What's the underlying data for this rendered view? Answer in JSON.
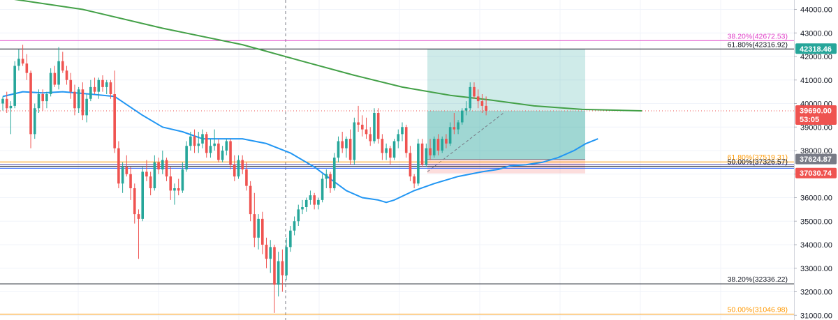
{
  "chart_data": {
    "type": "candlestick",
    "y_axis": {
      "position": "right",
      "ylim": [
        30800,
        44400
      ],
      "ticks": [
        {
          "value": 44000,
          "label": "44000.00"
        },
        {
          "value": 43000,
          "label": "43000.00"
        },
        {
          "value": 42000,
          "label": "42000.00"
        },
        {
          "value": 41000,
          "label": "41000.00"
        },
        {
          "value": 40000,
          "label": "40000.00"
        },
        {
          "value": 39000,
          "label": "39000.00"
        },
        {
          "value": 38000,
          "label": "38000.00"
        },
        {
          "value": 37000,
          "label": "37000.00"
        },
        {
          "value": 36000,
          "label": "36000.00"
        },
        {
          "value": 35000,
          "label": "35000.00"
        },
        {
          "value": 34000,
          "label": "34000.00"
        },
        {
          "value": 33000,
          "label": "33000.00"
        },
        {
          "value": 32000,
          "label": "32000.00"
        },
        {
          "value": 31000,
          "label": "31000.00"
        }
      ]
    },
    "grid": true,
    "fib_levels": [
      {
        "label": "38.20%(42672.53)",
        "value": 42672.53,
        "color": "#e040c8"
      },
      {
        "label": "61.80%(42316.92)",
        "value": 42316.92,
        "color": "#131722"
      },
      {
        "label": "61.80%(37519.31)",
        "value": 37519.31,
        "color": "#ff9800"
      },
      {
        "label": "50.00%(37326.57)",
        "value": 37326.57,
        "color": "#131722"
      },
      {
        "label": "38.20%(32336.22)",
        "value": 32336.22,
        "color": "#131722"
      },
      {
        "label": "50.00%(31046.98)",
        "value": 31046.98,
        "color": "#ff9800"
      }
    ],
    "extra_lines": [
      {
        "value": 37400,
        "color": "#3a3aa8"
      },
      {
        "value": 37250,
        "color": "#2962ff"
      }
    ],
    "price_badges": [
      {
        "label": "42318.46",
        "value": 42318.46,
        "color": "#26a69a"
      },
      {
        "label": "39690.00",
        "sublabel": "53:05",
        "value": 39690,
        "color": "#ef5350"
      },
      {
        "label": "37624.87",
        "value": 37624.87,
        "color": "#787b86"
      },
      {
        "label": "37030.74",
        "value": 37030.74,
        "color": "#ef5350"
      }
    ],
    "current_price": 39690,
    "position_box": {
      "entry": 37624.87,
      "target": 42318.46,
      "stop": 37030.74,
      "current": 39690,
      "profit_color": "#26a69a",
      "loss_color": "#ef5350"
    },
    "candles": [
      [
        40000,
        40300,
        39700,
        40200
      ],
      [
        40200,
        40500,
        39600,
        39800
      ],
      [
        39800,
        40100,
        38700,
        39900
      ],
      [
        39900,
        41800,
        39800,
        41600
      ],
      [
        41600,
        42300,
        41400,
        41900
      ],
      [
        41900,
        42500,
        41600,
        41700
      ],
      [
        41700,
        42100,
        41000,
        41300
      ],
      [
        41300,
        41400,
        38100,
        38700
      ],
      [
        38700,
        40000,
        38500,
        39800
      ],
      [
        39800,
        40600,
        39600,
        40400
      ],
      [
        40400,
        40600,
        39700,
        40100
      ],
      [
        40100,
        40500,
        39800,
        40400
      ],
      [
        40400,
        41500,
        40300,
        41300
      ],
      [
        41300,
        41600,
        40700,
        40800
      ],
      [
        40800,
        42400,
        40600,
        41800
      ],
      [
        41800,
        42200,
        41300,
        41400
      ],
      [
        41400,
        41600,
        40800,
        41000
      ],
      [
        41000,
        41300,
        40200,
        40500
      ],
      [
        40500,
        40800,
        39500,
        39800
      ],
      [
        39800,
        40700,
        39600,
        40600
      ],
      [
        40600,
        40900,
        39300,
        39500
      ],
      [
        39500,
        40400,
        39200,
        40200
      ],
      [
        40200,
        41000,
        40100,
        40700
      ],
      [
        40700,
        41100,
        40400,
        40500
      ],
      [
        40500,
        41100,
        40200,
        41000
      ],
      [
        41000,
        41200,
        40500,
        40700
      ],
      [
        40700,
        41000,
        40400,
        40900
      ],
      [
        40900,
        41000,
        40200,
        40400
      ],
      [
        40400,
        41400,
        37900,
        38100
      ],
      [
        38100,
        38400,
        36400,
        36600
      ],
      [
        36600,
        37500,
        36200,
        37300
      ],
      [
        37300,
        37800,
        36900,
        37000
      ],
      [
        37000,
        37300,
        35900,
        36400
      ],
      [
        36400,
        36600,
        34900,
        35300
      ],
      [
        35300,
        35500,
        33400,
        35100
      ],
      [
        35100,
        37300,
        35000,
        37100
      ],
      [
        37100,
        37600,
        36700,
        36900
      ],
      [
        36900,
        37100,
        36100,
        36400
      ],
      [
        36400,
        37800,
        36300,
        37500
      ],
      [
        37500,
        37700,
        37000,
        37200
      ],
      [
        37200,
        38000,
        37000,
        37600
      ],
      [
        37600,
        37700,
        36700,
        36900
      ],
      [
        36900,
        37300,
        35900,
        36300
      ],
      [
        36300,
        36600,
        35700,
        36400
      ],
      [
        36400,
        36800,
        36100,
        36300
      ],
      [
        36300,
        37500,
        36200,
        37200
      ],
      [
        37200,
        38400,
        37100,
        38200
      ],
      [
        38200,
        38800,
        38000,
        38600
      ],
      [
        38600,
        38900,
        37900,
        38200
      ],
      [
        38200,
        38800,
        37900,
        38300
      ],
      [
        38300,
        38900,
        38100,
        38700
      ],
      [
        38700,
        38800,
        37700,
        37900
      ],
      [
        37900,
        38500,
        37700,
        38200
      ],
      [
        38200,
        38900,
        38000,
        38300
      ],
      [
        38300,
        38500,
        37500,
        37600
      ],
      [
        37600,
        38200,
        37500,
        38000
      ],
      [
        38000,
        38500,
        37800,
        38400
      ],
      [
        38400,
        38500,
        37200,
        37400
      ],
      [
        37400,
        37800,
        36700,
        36900
      ],
      [
        36900,
        37800,
        36800,
        37600
      ],
      [
        37600,
        37800,
        37000,
        37200
      ],
      [
        37200,
        37500,
        36300,
        36500
      ],
      [
        36500,
        36700,
        35000,
        35300
      ],
      [
        35300,
        36200,
        33900,
        34300
      ],
      [
        34300,
        35300,
        33800,
        35100
      ],
      [
        35100,
        35400,
        33600,
        34000
      ],
      [
        34000,
        34300,
        33000,
        33400
      ],
      [
        33400,
        34200,
        32800,
        33900
      ],
      [
        33900,
        34000,
        31100,
        32300
      ],
      [
        32300,
        33700,
        31800,
        33300
      ],
      [
        33300,
        33800,
        32000,
        32700
      ],
      [
        32700,
        34300,
        32500,
        33900
      ],
      [
        33900,
        34800,
        33700,
        34600
      ],
      [
        34600,
        35200,
        34400,
        35000
      ],
      [
        35000,
        35700,
        34800,
        35500
      ],
      [
        35500,
        35900,
        35300,
        35600
      ],
      [
        35600,
        36000,
        35400,
        35900
      ],
      [
        35900,
        36300,
        35700,
        36100
      ],
      [
        36100,
        36200,
        35500,
        35700
      ],
      [
        35700,
        36000,
        35500,
        35900
      ],
      [
        35900,
        37000,
        35800,
        36800
      ],
      [
        36800,
        37200,
        36400,
        37000
      ],
      [
        37000,
        37100,
        36200,
        36400
      ],
      [
        36400,
        37900,
        36300,
        37700
      ],
      [
        37700,
        38600,
        37500,
        38400
      ],
      [
        38400,
        38800,
        37900,
        38100
      ],
      [
        38100,
        38600,
        37700,
        38500
      ],
      [
        38500,
        38900,
        37400,
        37600
      ],
      [
        37600,
        39400,
        37400,
        39200
      ],
      [
        39200,
        39900,
        38800,
        39100
      ],
      [
        39100,
        39500,
        38600,
        38900
      ],
      [
        38900,
        39400,
        38500,
        38700
      ],
      [
        38700,
        39000,
        38200,
        38400
      ],
      [
        38400,
        39800,
        38300,
        39600
      ],
      [
        39600,
        39800,
        38300,
        38500
      ],
      [
        38500,
        38700,
        37600,
        37900
      ],
      [
        37900,
        38300,
        37600,
        38100
      ],
      [
        38100,
        38200,
        37400,
        37700
      ],
      [
        37700,
        38500,
        37600,
        38400
      ],
      [
        38400,
        38900,
        38100,
        38700
      ],
      [
        38700,
        39200,
        38400,
        39000
      ],
      [
        39000,
        39100,
        37700,
        37900
      ],
      [
        37900,
        38200,
        36700,
        36900
      ],
      [
        36900,
        37000,
        36400,
        36600
      ],
      [
        36600,
        38500,
        36500,
        38300
      ],
      [
        38300,
        38500,
        37300,
        37400
      ],
      [
        37400,
        38300,
        37300,
        38100
      ],
      [
        38100,
        38500,
        37600,
        37800
      ],
      [
        37800,
        38600,
        37700,
        38500
      ],
      [
        38500,
        38700,
        37800,
        38000
      ],
      [
        38000,
        38600,
        37900,
        38500
      ],
      [
        38500,
        38700,
        38100,
        38300
      ],
      [
        38300,
        39200,
        38200,
        39000
      ],
      [
        39000,
        39600,
        38700,
        38900
      ],
      [
        38900,
        39300,
        38700,
        39200
      ],
      [
        39200,
        39800,
        39100,
        39700
      ],
      [
        39700,
        40100,
        39500,
        39800
      ],
      [
        39800,
        40900,
        39700,
        40700
      ],
      [
        40700,
        40900,
        40200,
        40300
      ],
      [
        40300,
        40600,
        39800,
        40100
      ],
      [
        40100,
        40400,
        39600,
        39900
      ],
      [
        39900,
        40300,
        39500,
        39690
      ]
    ],
    "moving_averages": [
      {
        "name": "",
        "color": "#43a047",
        "values": [
          [
            0,
            44500
          ],
          [
            20,
            44000
          ],
          [
            40,
            43200
          ],
          [
            60,
            42500
          ],
          [
            75,
            41800
          ],
          [
            88,
            41200
          ],
          [
            100,
            40700
          ],
          [
            112,
            40350
          ],
          [
            122,
            40150
          ],
          [
            133,
            39900
          ],
          [
            145,
            39750
          ],
          [
            160,
            39690
          ]
        ]
      },
      {
        "name": "",
        "color": "#2196f3",
        "values": [
          [
            0,
            40300
          ],
          [
            5,
            40500
          ],
          [
            10,
            40450
          ],
          [
            15,
            40500
          ],
          [
            22,
            40400
          ],
          [
            28,
            40300
          ],
          [
            35,
            39500
          ],
          [
            40,
            39000
          ],
          [
            45,
            38800
          ],
          [
            50,
            38500
          ],
          [
            60,
            38500
          ],
          [
            66,
            38300
          ],
          [
            72,
            37900
          ],
          [
            78,
            37300
          ],
          [
            82,
            36800
          ],
          [
            86,
            36300
          ],
          [
            90,
            36000
          ],
          [
            94,
            35900
          ],
          [
            96,
            35800
          ],
          [
            98,
            35900
          ],
          [
            103,
            36300
          ],
          [
            108,
            36600
          ],
          [
            114,
            36900
          ],
          [
            120,
            37100
          ],
          [
            124,
            37200
          ],
          [
            127,
            37350
          ],
          [
            131,
            37400
          ],
          [
            135,
            37500
          ],
          [
            139,
            37700
          ],
          [
            143,
            38000
          ],
          [
            146,
            38300
          ],
          [
            149,
            38500
          ]
        ]
      }
    ]
  }
}
